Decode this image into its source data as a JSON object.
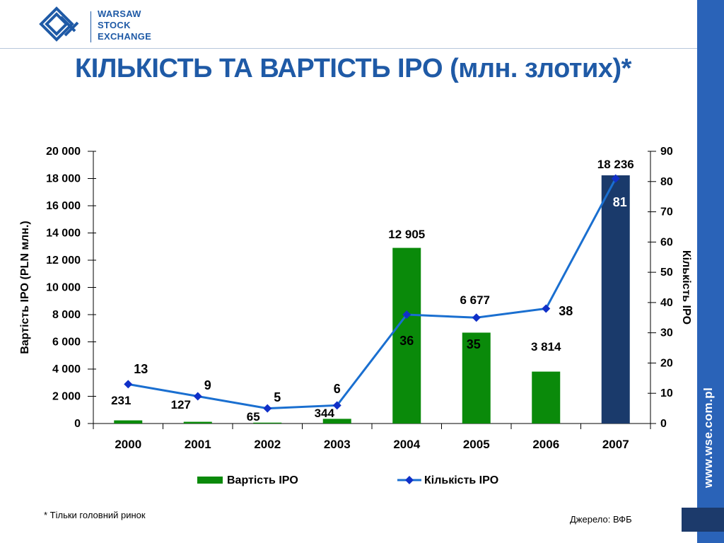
{
  "logo": {
    "line1": "WARSAW",
    "line2": "STOCK",
    "line3": "EXCHANGE"
  },
  "title": "КІЛЬКІСТЬ ТА ВАРТІСТЬ IPO (млн. злотих)*",
  "side_url": "www.wse.com.pl",
  "footnote": "* Тільки головний ринок",
  "source": "Джерело: ВФБ",
  "colors": {
    "accent": "#1f5aa6",
    "bar_green": "#0a8a0a",
    "bar_highlight": "#1a3a6b",
    "line_blue": "#1a6fd0",
    "marker_blue": "#1030c8",
    "side_band": "#2a63b8"
  },
  "chart_data": {
    "type": "bar",
    "categories": [
      "2000",
      "2001",
      "2002",
      "2003",
      "2004",
      "2005",
      "2006",
      "2007"
    ],
    "series": [
      {
        "name": "Вартість IPO",
        "type": "bar",
        "axis": "left",
        "values": [
          231,
          127,
          65,
          344,
          12905,
          6677,
          3814,
          18236
        ],
        "labels": [
          "231",
          "127",
          "65",
          "344",
          "12 905",
          "6 677",
          "3 814",
          "18 236"
        ]
      },
      {
        "name": "Кількість IPO",
        "type": "line",
        "axis": "right",
        "values": [
          13,
          9,
          5,
          6,
          36,
          35,
          38,
          81
        ],
        "labels": [
          "13",
          "9",
          "5",
          "6",
          "36",
          "35",
          "38",
          "81"
        ]
      }
    ],
    "ylabel_left": "Вартість IPO (PLN млн.)",
    "ylabel_right": "Кількість IPO",
    "ylim_left": [
      0,
      20000
    ],
    "ylim_right": [
      0,
      90
    ],
    "yticks_left": [
      "0",
      "2 000",
      "4 000",
      "6 000",
      "8 000",
      "10 000",
      "12 000",
      "14 000",
      "16 000",
      "18 000",
      "20 000"
    ],
    "yticks_right": [
      "0",
      "10",
      "20",
      "30",
      "40",
      "50",
      "60",
      "70",
      "80",
      "90"
    ],
    "legend_position": "bottom",
    "grid": false
  }
}
